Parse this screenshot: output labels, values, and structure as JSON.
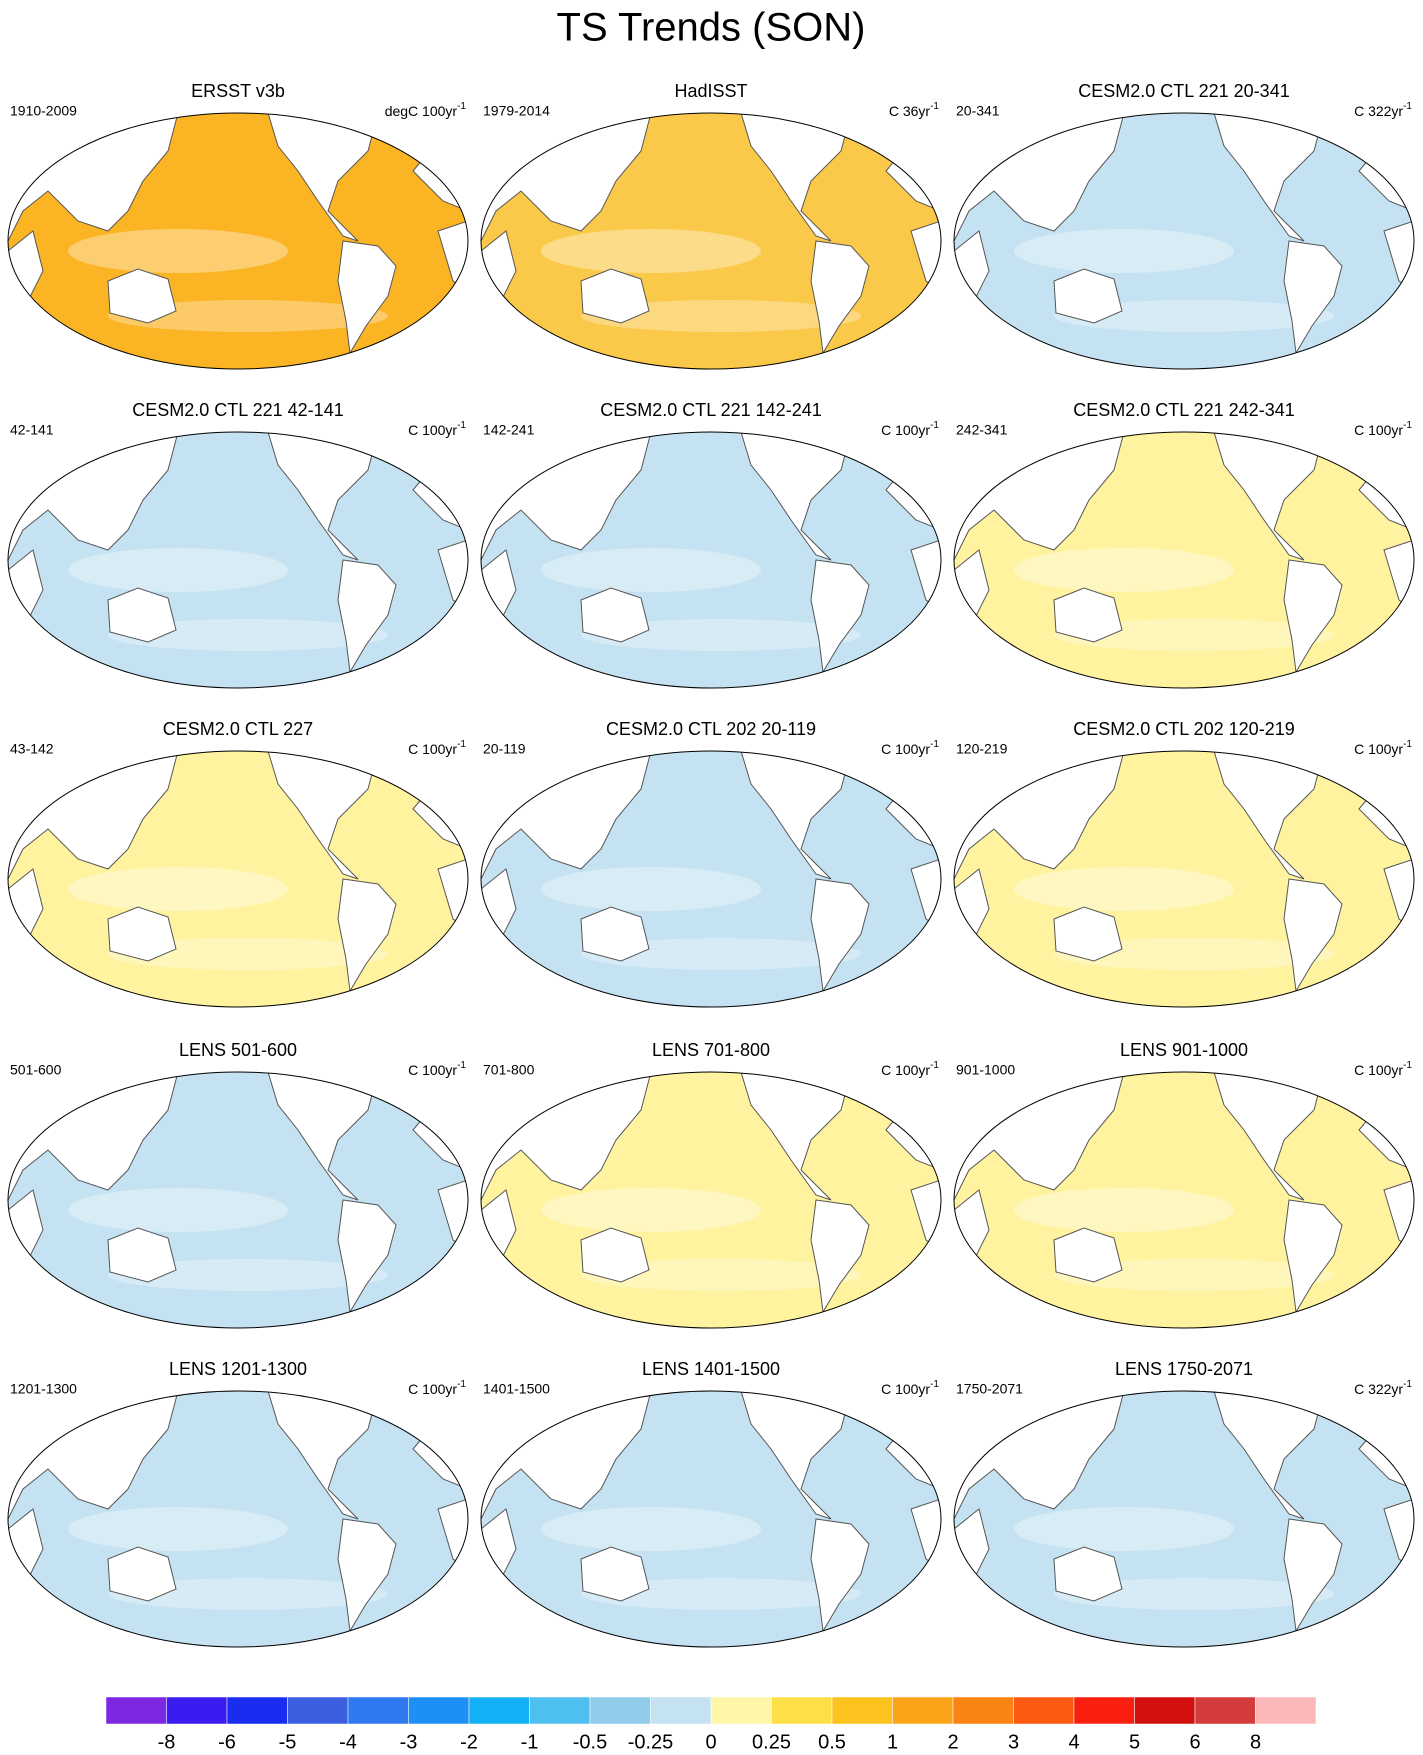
{
  "chart_data": {
    "type": "map-panels",
    "title": "TS Trends (SON)",
    "panels": [
      {
        "title": "ERSST v3b",
        "left": "1910-2009",
        "units": "degC 100yr",
        "sup": "-1",
        "color": "#fbb424"
      },
      {
        "title": "HadISST",
        "left": "1979-2014",
        "units": "C 36yr",
        "sup": "-1",
        "color": "#fbc94a"
      },
      {
        "title": "CESM2.0 CTL 221 20-341",
        "left": "20-341",
        "units": "C 322yr",
        "sup": "-1",
        "color": "#c4e2f2"
      },
      {
        "title": "CESM2.0 CTL 221 42-141",
        "left": "42-141",
        "units": "C 100yr",
        "sup": "-1",
        "color": "#c4e2f2"
      },
      {
        "title": "CESM2.0 CTL 221 142-241",
        "left": "142-241",
        "units": "C 100yr",
        "sup": "-1",
        "color": "#c4e2f2"
      },
      {
        "title": "CESM2.0 CTL 221 242-341",
        "left": "242-341",
        "units": "C 100yr",
        "sup": "-1",
        "color": "#fff3a0"
      },
      {
        "title": "CESM2.0 CTL 227",
        "left": "43-142",
        "units": "C 100yr",
        "sup": "-1",
        "color": "#fff3a0"
      },
      {
        "title": "CESM2.0 CTL 202 20-119",
        "left": "20-119",
        "units": "C 100yr",
        "sup": "-1",
        "color": "#c4e2f2"
      },
      {
        "title": "CESM2.0 CTL 202 120-219",
        "left": "120-219",
        "units": "C 100yr",
        "sup": "-1",
        "color": "#fff3a0"
      },
      {
        "title": "LENS 501-600",
        "left": "501-600",
        "units": "C 100yr",
        "sup": "-1",
        "color": "#c4e2f2"
      },
      {
        "title": "LENS 701-800",
        "left": "701-800",
        "units": "C 100yr",
        "sup": "-1",
        "color": "#fff3a0"
      },
      {
        "title": "LENS 901-1000",
        "left": "901-1000",
        "units": "C 100yr",
        "sup": "-1",
        "color": "#fff3a0"
      },
      {
        "title": "LENS 1201-1300",
        "left": "1201-1300",
        "units": "C 100yr",
        "sup": "-1",
        "color": "#c4e2f2"
      },
      {
        "title": "LENS 1401-1500",
        "left": "1401-1500",
        "units": "C 100yr",
        "sup": "-1",
        "color": "#c4e2f2"
      },
      {
        "title": "LENS 1750-2071",
        "left": "1750-2071",
        "units": "C 322yr",
        "sup": "-1",
        "color": "#c4e2f2"
      }
    ],
    "colorbar": {
      "labels": [
        -8,
        -6,
        -5,
        -4,
        -3,
        -2,
        -1,
        -0.5,
        -0.25,
        0,
        0.25,
        0.5,
        1,
        2,
        3,
        4,
        5,
        6,
        8
      ],
      "colors": [
        "#7b28e0",
        "#3a1cf0",
        "#1a2cf0",
        "#3c5ee0",
        "#2e78f0",
        "#1e90f5",
        "#13b0f5",
        "#4ec0ef",
        "#92cceb",
        "#c4e2f2",
        "#fff7a8",
        "#fde047",
        "#fcc21e",
        "#fba41a",
        "#fb8312",
        "#fb5a10",
        "#f92010",
        "#d31010",
        "#d43c3c",
        "#fcb8b8"
      ]
    }
  }
}
